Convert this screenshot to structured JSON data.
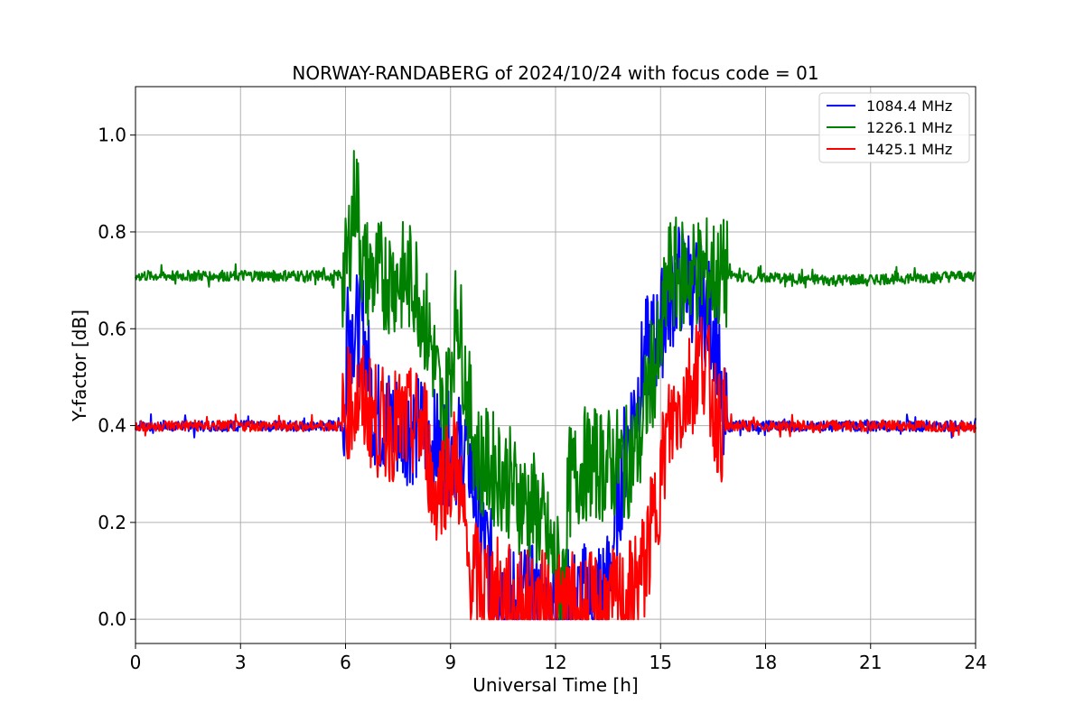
{
  "chart_data": {
    "type": "line",
    "title": "NORWAY-RANDABERG of 2024/10/24 with focus code = 01",
    "xlabel": "Universal Time [h]",
    "ylabel": "Y-factor [dB]",
    "xlim": [
      0,
      24
    ],
    "ylim": [
      -0.05,
      1.1
    ],
    "xticks": [
      0,
      3,
      6,
      9,
      12,
      15,
      18,
      21,
      24
    ],
    "xtick_labels": [
      "0",
      "3",
      "6",
      "9",
      "12",
      "15",
      "18",
      "21",
      "24"
    ],
    "yticks": [
      0.0,
      0.2,
      0.4,
      0.6,
      0.8,
      1.0
    ],
    "ytick_labels": [
      "0.0",
      "0.2",
      "0.4",
      "0.6",
      "0.8",
      "1.0"
    ],
    "grid": true,
    "legend_position": "top-right",
    "series": [
      {
        "name": "1084.4 MHz",
        "color": "#0000ff",
        "x": [
          0,
          6.0,
          6.05,
          6.2,
          6.5,
          6.8,
          6.9,
          7.5,
          8.3,
          8.5,
          9.0,
          9.5,
          9.8,
          10.2,
          10.6,
          11.0,
          11.5,
          12.0,
          12.5,
          13.0,
          13.5,
          13.8,
          14.0,
          14.3,
          14.6,
          14.9,
          15.2,
          15.5,
          15.8,
          16.2,
          16.6,
          16.75,
          17.0,
          20.0,
          24.0
        ],
        "y": [
          0.4,
          0.4,
          0.65,
          0.6,
          0.6,
          0.43,
          0.42,
          0.4,
          0.39,
          0.36,
          0.35,
          0.35,
          0.2,
          0.1,
          0.03,
          0.05,
          0.03,
          0.03,
          0.03,
          0.05,
          0.07,
          0.25,
          0.35,
          0.45,
          0.55,
          0.58,
          0.65,
          0.7,
          0.7,
          0.65,
          0.6,
          0.4,
          0.4,
          0.4,
          0.4
        ]
      },
      {
        "name": "1226.1 MHz",
        "color": "#008000",
        "x": [
          0,
          6.0,
          6.3,
          6.5,
          6.8,
          7.0,
          8.0,
          8.5,
          8.8,
          9.2,
          9.5,
          9.8,
          10.0,
          10.5,
          11.0,
          11.5,
          11.8,
          12.2,
          12.4,
          12.8,
          13.5,
          14.0,
          14.4,
          14.7,
          15.0,
          15.2,
          15.6,
          16.0,
          16.6,
          17.0,
          20.0,
          24.0
        ],
        "y": [
          0.71,
          0.71,
          0.9,
          0.72,
          0.71,
          0.71,
          0.7,
          0.55,
          0.4,
          0.65,
          0.45,
          0.33,
          0.32,
          0.3,
          0.25,
          0.22,
          0.15,
          0.08,
          0.28,
          0.32,
          0.32,
          0.32,
          0.36,
          0.5,
          0.55,
          0.71,
          0.71,
          0.72,
          0.71,
          0.71,
          0.7,
          0.71
        ]
      },
      {
        "name": "1425.1 MHz",
        "color": "#ff0000",
        "x": [
          0,
          5.9,
          6.1,
          6.5,
          6.8,
          7.0,
          8.0,
          8.3,
          8.5,
          8.8,
          9.2,
          9.5,
          9.8,
          10.2,
          10.6,
          11.0,
          12.0,
          13.0,
          14.0,
          14.5,
          14.8,
          15.0,
          15.2,
          15.4,
          15.8,
          16.2,
          16.5,
          16.7,
          17.0,
          20.0,
          24.0
        ],
        "y": [
          0.4,
          0.4,
          0.45,
          0.45,
          0.42,
          0.4,
          0.4,
          0.39,
          0.25,
          0.3,
          0.33,
          0.1,
          0.08,
          0.06,
          0.04,
          0.03,
          0.02,
          0.02,
          0.03,
          0.1,
          0.2,
          0.3,
          0.38,
          0.42,
          0.48,
          0.55,
          0.45,
          0.4,
          0.4,
          0.4,
          0.4
        ]
      }
    ]
  }
}
